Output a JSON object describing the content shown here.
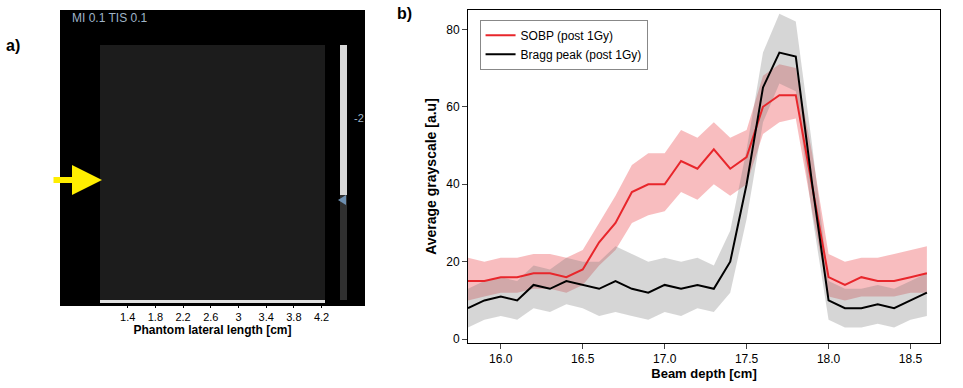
{
  "chart_data": [
    {
      "type": "image",
      "label": "a)",
      "annotations": [
        "MI 0.1 TIS 0.1",
        "-2"
      ],
      "xlabel": "Phantom lateral length [cm]",
      "xlim": [
        1.0,
        4.25
      ],
      "xticks": [
        1.4,
        1.8,
        2.2,
        2.6,
        3.0,
        3.4,
        3.8,
        4.2
      ]
    },
    {
      "type": "line",
      "label": "b)",
      "xlabel": "Beam depth [cm]",
      "ylabel": "Average grayscale [a.u]",
      "x": [
        15.8,
        15.9,
        16.0,
        16.1,
        16.2,
        16.3,
        16.4,
        16.5,
        16.6,
        16.7,
        16.8,
        16.9,
        17.0,
        17.1,
        17.2,
        17.3,
        17.4,
        17.5,
        17.6,
        17.7,
        17.8,
        17.9,
        18.0,
        18.1,
        18.2,
        18.3,
        18.4,
        18.5,
        18.6
      ],
      "series": [
        {
          "name": "SOBP (post 1Gy)",
          "color": "#e8262b",
          "values": [
            15,
            15,
            16,
            16,
            17,
            17,
            16,
            18,
            25,
            30,
            38,
            40,
            40,
            46,
            44,
            49,
            44,
            47,
            60,
            63,
            63,
            40,
            16,
            14,
            16,
            15,
            15,
            16,
            17
          ],
          "band_lower": [
            10,
            11,
            12,
            12,
            13,
            13,
            12,
            14,
            19,
            23,
            30,
            32,
            33,
            38,
            36,
            40,
            37,
            40,
            53,
            56,
            57,
            33,
            11,
            10,
            11,
            11,
            11,
            12,
            12
          ],
          "band_upper": [
            21,
            20,
            21,
            21,
            22,
            22,
            21,
            23,
            30,
            37,
            45,
            48,
            48,
            54,
            52,
            56,
            52,
            54,
            68,
            71,
            70,
            48,
            22,
            20,
            21,
            21,
            22,
            23,
            24
          ]
        },
        {
          "name": "Bragg peak (post 1Gy)",
          "color": "#000000",
          "values": [
            8,
            10,
            11,
            10,
            14,
            13,
            15,
            14,
            13,
            15,
            13,
            12,
            14,
            13,
            14,
            13,
            20,
            40,
            65,
            74,
            73,
            40,
            10,
            8,
            8,
            9,
            8,
            10,
            12
          ],
          "band_lower": [
            3,
            5,
            6,
            5,
            8,
            7,
            9,
            8,
            6,
            7,
            6,
            5,
            7,
            6,
            8,
            7,
            12,
            31,
            56,
            66,
            64,
            32,
            5,
            3,
            3,
            4,
            3,
            5,
            6
          ],
          "band_upper": [
            13,
            15,
            16,
            15,
            19,
            18,
            21,
            20,
            20,
            24,
            22,
            20,
            21,
            20,
            21,
            19,
            28,
            49,
            74,
            84,
            82,
            50,
            15,
            13,
            13,
            14,
            13,
            15,
            17
          ]
        }
      ],
      "xlim": [
        15.8,
        18.68
      ],
      "ylim": [
        -1,
        85
      ],
      "xticks": [
        {
          "value": 16,
          "label": "16.0"
        },
        16.5,
        {
          "value": 17,
          "label": "17.0"
        },
        17.5,
        {
          "value": 18,
          "label": "18.0"
        },
        18.5
      ],
      "yticks": [
        0,
        20,
        40,
        60,
        80
      ],
      "legend": "upper left",
      "grid": false
    }
  ]
}
